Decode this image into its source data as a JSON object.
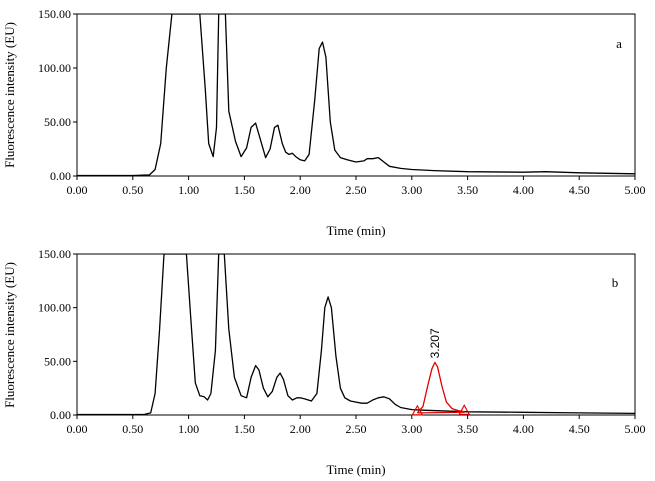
{
  "chart_data": [
    {
      "type": "line",
      "panel_label": "a",
      "xlabel": "Time (min)",
      "ylabel": "Fluorescence intensity (EU)",
      "xlim": [
        0,
        5
      ],
      "ylim": [
        0,
        150
      ],
      "x_ticks": [
        "0.00",
        "0.50",
        "1.00",
        "1.50",
        "2.00",
        "2.50",
        "3.00",
        "3.50",
        "4.00",
        "4.50",
        "5.00"
      ],
      "y_ticks": [
        "0.00",
        "50.00",
        "100.00",
        "150.00"
      ],
      "grid": false,
      "series": [
        {
          "color": "#000000",
          "points": [
            [
              0,
              0.5
            ],
            [
              0.3,
              0.5
            ],
            [
              0.5,
              0.5
            ],
            [
              0.65,
              1
            ],
            [
              0.7,
              6
            ],
            [
              0.75,
              30
            ],
            [
              0.8,
              100
            ],
            [
              0.85,
              150
            ],
            [
              0.9,
              150
            ],
            [
              1.1,
              150
            ],
            [
              1.15,
              80
            ],
            [
              1.18,
              30
            ],
            [
              1.22,
              18
            ],
            [
              1.25,
              45
            ],
            [
              1.27,
              150
            ],
            [
              1.33,
              150
            ],
            [
              1.36,
              60
            ],
            [
              1.42,
              32
            ],
            [
              1.47,
              18
            ],
            [
              1.52,
              26
            ],
            [
              1.56,
              45
            ],
            [
              1.6,
              49
            ],
            [
              1.64,
              35
            ],
            [
              1.69,
              17
            ],
            [
              1.73,
              25
            ],
            [
              1.77,
              45
            ],
            [
              1.8,
              47
            ],
            [
              1.84,
              30
            ],
            [
              1.87,
              22
            ],
            [
              1.9,
              20
            ],
            [
              1.93,
              21
            ],
            [
              1.96,
              18
            ],
            [
              2.0,
              15
            ],
            [
              2.04,
              14
            ],
            [
              2.08,
              20
            ],
            [
              2.13,
              70
            ],
            [
              2.17,
              118
            ],
            [
              2.2,
              124
            ],
            [
              2.23,
              110
            ],
            [
              2.27,
              50
            ],
            [
              2.31,
              24
            ],
            [
              2.36,
              17
            ],
            [
              2.42,
              15
            ],
            [
              2.5,
              13
            ],
            [
              2.57,
              14
            ],
            [
              2.6,
              16
            ],
            [
              2.65,
              16
            ],
            [
              2.7,
              17
            ],
            [
              2.75,
              13
            ],
            [
              2.8,
              9
            ],
            [
              2.9,
              7
            ],
            [
              3.0,
              6
            ],
            [
              3.2,
              5
            ],
            [
              3.5,
              4
            ],
            [
              4.0,
              3.5
            ],
            [
              4.2,
              4
            ],
            [
              4.5,
              3
            ],
            [
              5.0,
              2
            ]
          ]
        }
      ]
    },
    {
      "type": "line",
      "panel_label": "b",
      "xlabel": "Time (min)",
      "ylabel": "Fluorescence intensity (EU)",
      "xlim": [
        0,
        5
      ],
      "ylim": [
        0,
        150
      ],
      "x_ticks": [
        "0.00",
        "0.50",
        "1.00",
        "1.50",
        "2.00",
        "2.50",
        "3.00",
        "3.50",
        "4.00",
        "4.50",
        "5.00"
      ],
      "y_ticks": [
        "0.00",
        "50.00",
        "100.00",
        "150.00"
      ],
      "grid": false,
      "series": [
        {
          "color": "#000000",
          "points": [
            [
              0,
              0.5
            ],
            [
              0.4,
              0.5
            ],
            [
              0.6,
              0.5
            ],
            [
              0.66,
              2
            ],
            [
              0.7,
              20
            ],
            [
              0.74,
              80
            ],
            [
              0.78,
              150
            ],
            [
              0.98,
              150
            ],
            [
              1.02,
              90
            ],
            [
              1.06,
              30
            ],
            [
              1.1,
              18
            ],
            [
              1.14,
              17
            ],
            [
              1.17,
              14
            ],
            [
              1.2,
              20
            ],
            [
              1.24,
              60
            ],
            [
              1.27,
              150
            ],
            [
              1.32,
              150
            ],
            [
              1.36,
              80
            ],
            [
              1.41,
              35
            ],
            [
              1.47,
              18
            ],
            [
              1.52,
              16
            ],
            [
              1.56,
              35
            ],
            [
              1.6,
              46
            ],
            [
              1.63,
              42
            ],
            [
              1.67,
              25
            ],
            [
              1.71,
              17
            ],
            [
              1.75,
              22
            ],
            [
              1.79,
              35
            ],
            [
              1.82,
              39
            ],
            [
              1.85,
              33
            ],
            [
              1.89,
              18
            ],
            [
              1.93,
              14
            ],
            [
              1.97,
              16
            ],
            [
              2.0,
              16
            ],
            [
              2.04,
              15
            ],
            [
              2.1,
              13
            ],
            [
              2.15,
              20
            ],
            [
              2.19,
              60
            ],
            [
              2.22,
              100
            ],
            [
              2.25,
              110
            ],
            [
              2.28,
              100
            ],
            [
              2.32,
              55
            ],
            [
              2.36,
              25
            ],
            [
              2.4,
              16
            ],
            [
              2.45,
              13
            ],
            [
              2.5,
              12
            ],
            [
              2.55,
              11
            ],
            [
              2.6,
              11
            ],
            [
              2.65,
              14
            ],
            [
              2.7,
              16
            ],
            [
              2.75,
              17
            ],
            [
              2.8,
              15
            ],
            [
              2.85,
              10
            ],
            [
              2.9,
              7
            ],
            [
              3.0,
              5
            ],
            [
              3.1,
              4.5
            ],
            [
              3.5,
              3
            ],
            [
              4.0,
              2.5
            ],
            [
              4.5,
              2
            ],
            [
              5.0,
              1.5
            ]
          ]
        },
        {
          "color": "#e00000",
          "points": [
            [
              3.05,
              2
            ],
            [
              3.1,
              8
            ],
            [
              3.14,
              26
            ],
            [
              3.18,
              43
            ],
            [
              3.207,
              49
            ],
            [
              3.23,
              45
            ],
            [
              3.27,
              27
            ],
            [
              3.31,
              12
            ],
            [
              3.36,
              6
            ],
            [
              3.42,
              4
            ],
            [
              3.47,
              3
            ]
          ]
        }
      ],
      "baseline": {
        "color": "#e00000",
        "from": [
          3.05,
          2
        ],
        "to": [
          3.47,
          2.5
        ]
      },
      "peak_annotation": {
        "label": "3.207",
        "x": 3.207,
        "y": 49
      }
    }
  ]
}
